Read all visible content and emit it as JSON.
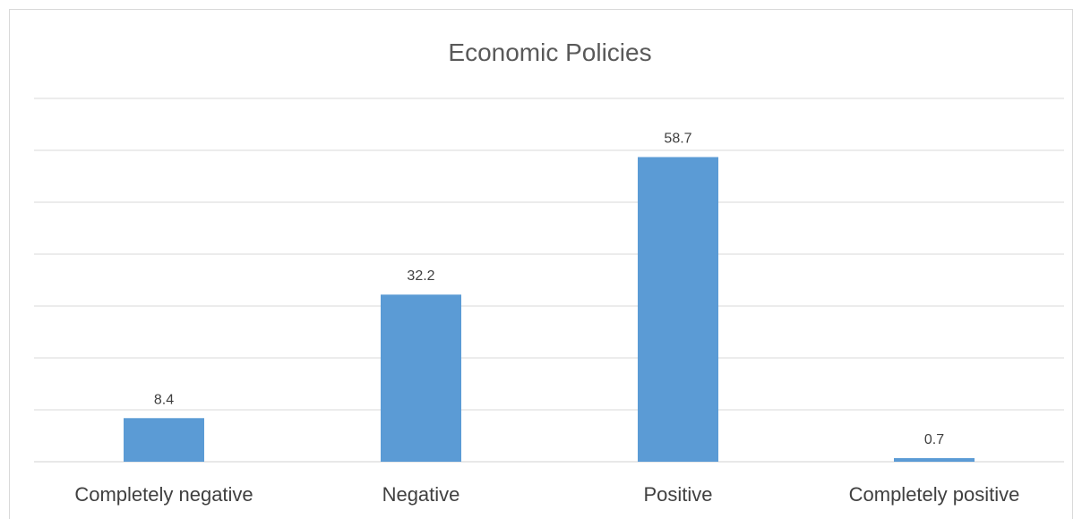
{
  "chart_data": {
    "type": "bar",
    "title": "Economic Policies",
    "xlabel": "",
    "ylabel": "",
    "categories": [
      "Completely negative",
      "Negative",
      "Positive",
      "Completely positive"
    ],
    "values": [
      8.4,
      32.2,
      58.7,
      0.7
    ],
    "data_labels": [
      "8.4",
      "32.2",
      "58.7",
      "0.7"
    ],
    "ylim": [
      0,
      70
    ],
    "gridlines": true,
    "legend": "none",
    "bar_color": "#5b9bd5"
  }
}
